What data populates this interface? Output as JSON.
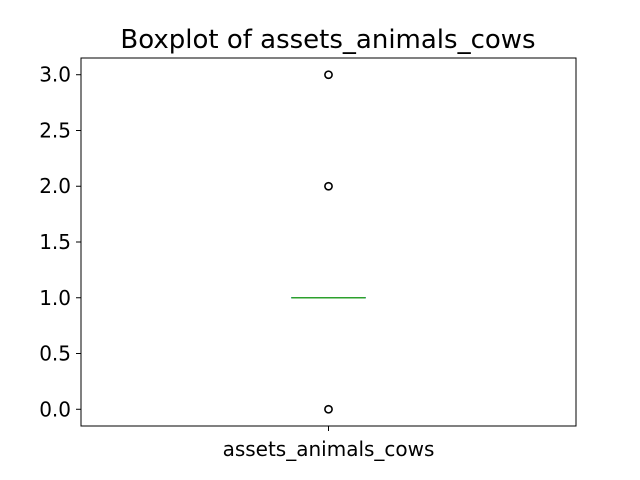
{
  "chart_data": {
    "type": "box",
    "title": "Boxplot of assets_animals_cows",
    "xlabel": "",
    "ylabel": "",
    "categories": [
      "assets_animals_cows"
    ],
    "yticks": [
      "0.0",
      "0.5",
      "1.0",
      "1.5",
      "2.0",
      "2.5",
      "3.0"
    ],
    "ylim": [
      -0.15,
      3.15
    ],
    "boxes": [
      {
        "category": "assets_animals_cows",
        "q1": 1.0,
        "median": 1.0,
        "q3": 1.0,
        "whisker_low": 1.0,
        "whisker_high": 1.0,
        "outliers": [
          0.0,
          2.0,
          3.0
        ]
      }
    ],
    "grid": false,
    "colors": {
      "median": "#2ca02c",
      "box": "#1f77b4",
      "whisker": "#1f77b4",
      "outlier_edge": "#000000",
      "axes": "#000000"
    }
  }
}
